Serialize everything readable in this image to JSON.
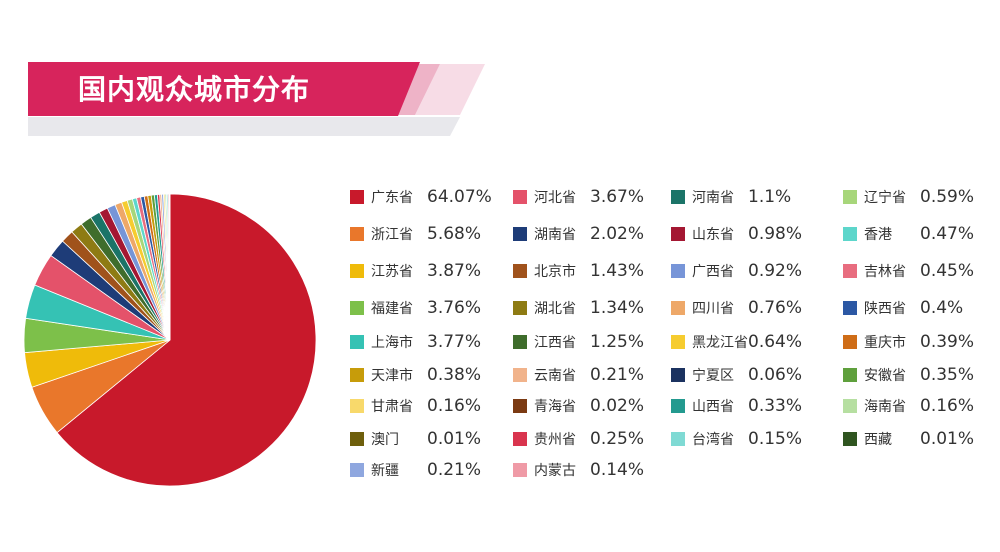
{
  "title": "国内观众城市分布",
  "colors": {
    "banner": "#d7245c",
    "banner_light": "#f6d8e2",
    "banner_shadow": "#e6e6ea"
  },
  "chart_data": {
    "type": "pie",
    "title": "国内观众城市分布",
    "unit": "%",
    "series": [
      {
        "name": "广东省",
        "value": 64.07,
        "label": "64.07%",
        "color": "#c8192b"
      },
      {
        "name": "浙江省",
        "value": 5.68,
        "label": "5.68%",
        "color": "#e9772b"
      },
      {
        "name": "江苏省",
        "value": 3.87,
        "label": "3.87%",
        "color": "#efbb0a"
      },
      {
        "name": "福建省",
        "value": 3.76,
        "label": "3.76%",
        "color": "#7dc04a"
      },
      {
        "name": "上海市",
        "value": 3.77,
        "label": "3.77%",
        "color": "#35c2b4"
      },
      {
        "name": "河北省",
        "value": 3.67,
        "label": "3.67%",
        "color": "#e4526a"
      },
      {
        "name": "湖南省",
        "value": 2.02,
        "label": "2.02%",
        "color": "#1e3c78"
      },
      {
        "name": "北京市",
        "value": 1.43,
        "label": "1.43%",
        "color": "#a0521b"
      },
      {
        "name": "湖北省",
        "value": 1.34,
        "label": "1.34%",
        "color": "#8e7b13"
      },
      {
        "name": "江西省",
        "value": 1.25,
        "label": "1.25%",
        "color": "#3f6d2c"
      },
      {
        "name": "河南省",
        "value": 1.1,
        "label": "1.1%",
        "color": "#1b7468"
      },
      {
        "name": "山东省",
        "value": 0.98,
        "label": "0.98%",
        "color": "#a41732"
      },
      {
        "name": "广西省",
        "value": 0.92,
        "label": "0.92%",
        "color": "#7795d8"
      },
      {
        "name": "四川省",
        "value": 0.76,
        "label": "0.76%",
        "color": "#eea868"
      },
      {
        "name": "黑龙江省",
        "value": 0.64,
        "label": "0.64%",
        "color": "#f6cc2f"
      },
      {
        "name": "辽宁省",
        "value": 0.59,
        "label": "0.59%",
        "color": "#a7d67a"
      },
      {
        "name": "香港",
        "value": 0.47,
        "label": "0.47%",
        "color": "#5dd6cb"
      },
      {
        "name": "吉林省",
        "value": 0.45,
        "label": "0.45%",
        "color": "#e86d7f"
      },
      {
        "name": "陕西省",
        "value": 0.4,
        "label": "0.4%",
        "color": "#2c58a4"
      },
      {
        "name": "重庆市",
        "value": 0.39,
        "label": "0.39%",
        "color": "#cf6d17"
      },
      {
        "name": "天津市",
        "value": 0.38,
        "label": "0.38%",
        "color": "#c79c0a"
      },
      {
        "name": "安徽省",
        "value": 0.35,
        "label": "0.35%",
        "color": "#5fa03c"
      },
      {
        "name": "山西省",
        "value": 0.33,
        "label": "0.33%",
        "color": "#239a8f"
      },
      {
        "name": "贵州省",
        "value": 0.25,
        "label": "0.25%",
        "color": "#d9344e"
      },
      {
        "name": "云南省",
        "value": 0.21,
        "label": "0.21%",
        "color": "#f1b38b"
      },
      {
        "name": "新疆",
        "value": 0.21,
        "label": "0.21%",
        "color": "#8fa7df"
      },
      {
        "name": "甘肃省",
        "value": 0.16,
        "label": "0.16%",
        "color": "#f8d96b"
      },
      {
        "name": "海南省",
        "value": 0.16,
        "label": "0.16%",
        "color": "#b6dfa1"
      },
      {
        "name": "台湾省",
        "value": 0.15,
        "label": "0.15%",
        "color": "#7fdad4"
      },
      {
        "name": "内蒙古",
        "value": 0.14,
        "label": "0.14%",
        "color": "#ef9aa6"
      },
      {
        "name": "宁夏区",
        "value": 0.06,
        "label": "0.06%",
        "color": "#1b3260"
      },
      {
        "name": "青海省",
        "value": 0.02,
        "label": "0.02%",
        "color": "#7b3a12"
      },
      {
        "name": "澳门",
        "value": 0.01,
        "label": "0.01%",
        "color": "#6e5f0c"
      },
      {
        "name": "西藏",
        "value": 0.01,
        "label": "0.01%",
        "color": "#2f5520"
      }
    ],
    "legend_columns": [
      [
        "广东省",
        "浙江省",
        "江苏省",
        "福建省",
        "上海市",
        "天津市",
        "甘肃省",
        "澳门",
        "新疆"
      ],
      [
        "河北省",
        "湖南省",
        "北京市",
        "湖北省",
        "江西省",
        "云南省",
        "青海省",
        "贵州省",
        "内蒙古"
      ],
      [
        "河南省",
        "山东省",
        "广西省",
        "四川省",
        "黑龙江省",
        "宁夏区",
        "山西省",
        "台湾省"
      ],
      [
        "辽宁省",
        "香港",
        "吉林省",
        "陕西省",
        "重庆市",
        "安徽省",
        "海南省",
        "西藏"
      ]
    ]
  }
}
